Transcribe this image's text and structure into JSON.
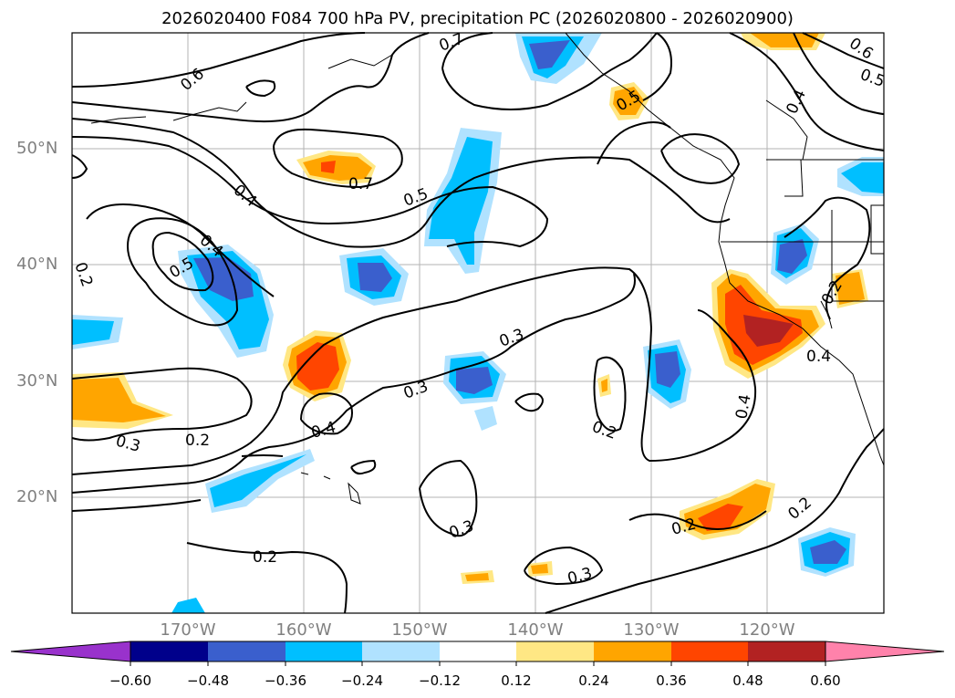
{
  "title": "2026020400 F084 700 hPa PV, precipitation PC (2026020800 - 2026020900)",
  "axes": {
    "lat_labels": [
      "50°N",
      "40°N",
      "30°N",
      "20°N"
    ],
    "lon_labels": [
      "170°W",
      "160°W",
      "150°W",
      "140°W",
      "130°W",
      "120°W"
    ]
  },
  "contour_labels": [
    "0.7",
    "0.6",
    "0.6",
    "0.5",
    "0.4",
    "0.4",
    "0.4",
    "0.5",
    "0.5",
    "0.7",
    "0.5",
    "0.2",
    "0.4",
    "0.3",
    "0.2",
    "0.3",
    "0.4",
    "0.2",
    "0.3",
    "0.2",
    "0.4",
    "0.2",
    "0.2",
    "0.3",
    "0.2",
    "0.3"
  ],
  "colorbar": {
    "ticks": [
      "−0.60",
      "−0.48",
      "−0.36",
      "−0.24",
      "−0.12",
      "0.12",
      "0.24",
      "0.36",
      "0.48",
      "0.60"
    ],
    "colors": [
      "#9932cc",
      "#00008b",
      "#3a5fcd",
      "#00bfff",
      "#b0e2ff",
      "#ffffff",
      "#ffe784",
      "#ffa500",
      "#ff4500",
      "#b22222",
      "#ff82ab"
    ]
  },
  "colors": {
    "blue_light": "#b0e2ff",
    "blue": "#00bfff",
    "blue_dark": "#3a5fcd",
    "yellow": "#ffe784",
    "orange": "#ffa500",
    "red": "#ff4500",
    "dark_red": "#b22222"
  }
}
